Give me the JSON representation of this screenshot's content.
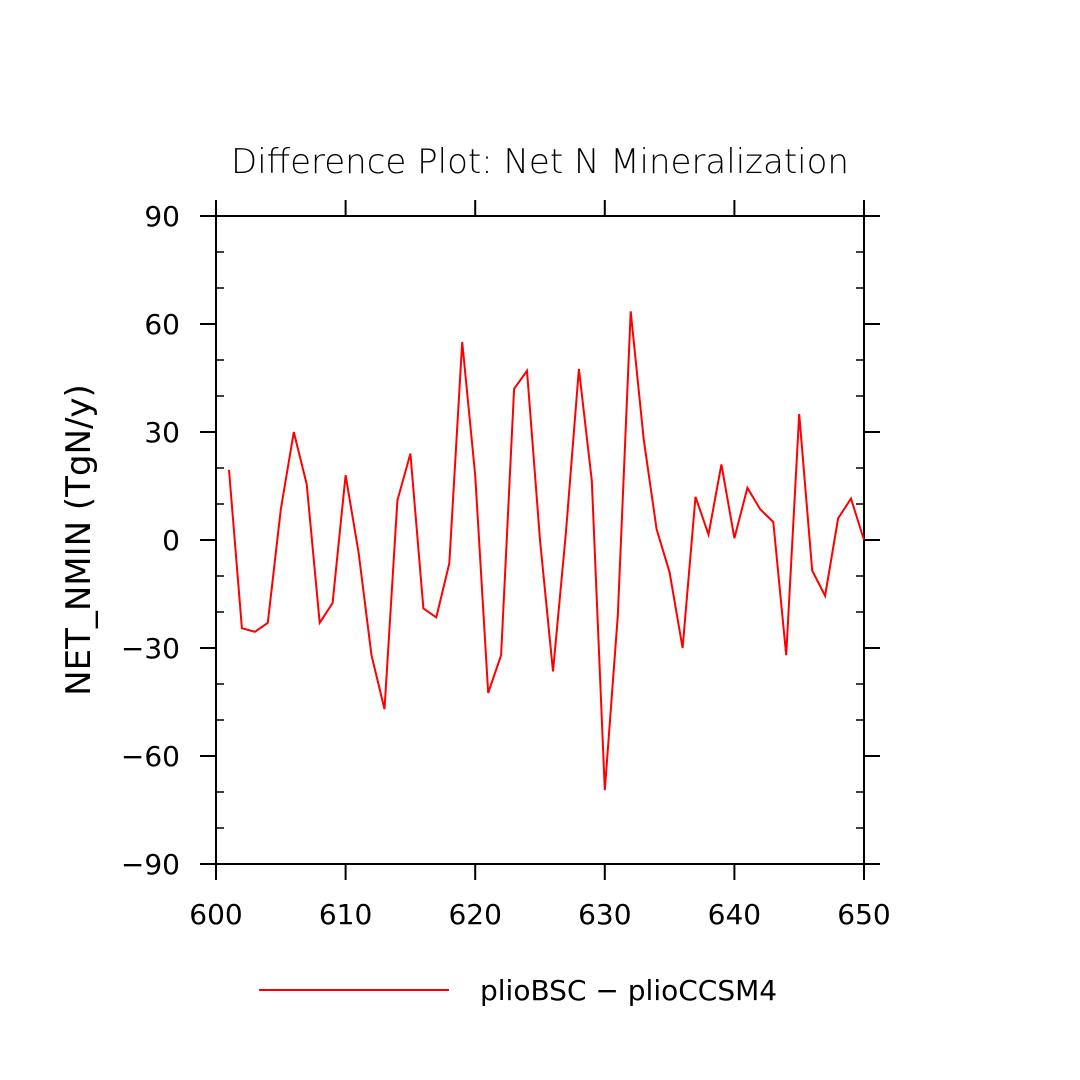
{
  "chart_data": {
    "type": "line",
    "title": "Difference Plot: Net N Mineralization",
    "xlabel": "",
    "ylabel": "NET_NMIN   (TgN/y)",
    "xlim": [
      600,
      650
    ],
    "ylim": [
      -90,
      90
    ],
    "xticks": [
      "600",
      "610",
      "620",
      "630",
      "640",
      "650"
    ],
    "yticks": [
      "90",
      "60",
      "30",
      "0",
      "−30",
      "−60",
      "−90"
    ],
    "x_tick_values": [
      600,
      610,
      620,
      630,
      640,
      650
    ],
    "y_tick_values": [
      90,
      60,
      30,
      0,
      -30,
      -60,
      -90
    ],
    "grid": false,
    "legend_position": "bottom",
    "series": [
      {
        "name": "plioBSC − plioCCSM4",
        "color": "#ff0000",
        "x": [
          601,
          602,
          603,
          604,
          605,
          606,
          607,
          608,
          609,
          610,
          611,
          612,
          613,
          614,
          615,
          616,
          617,
          618,
          619,
          620,
          621,
          622,
          623,
          624,
          625,
          626,
          627,
          628,
          629,
          630,
          631,
          632,
          633,
          634,
          635,
          636,
          637,
          638,
          639,
          640,
          641,
          642,
          643,
          644,
          645,
          646,
          647,
          648,
          649,
          650
        ],
        "y": [
          19.5,
          -24.5,
          -25.5,
          -23,
          8.5,
          30,
          15.5,
          -23,
          -17.5,
          18,
          -3.5,
          -32,
          -47,
          11,
          24,
          -19,
          -21.5,
          -6.5,
          55,
          18,
          -42.5,
          -32,
          42,
          47,
          0,
          -36.5,
          2,
          47.5,
          16.5,
          -69.5,
          -21,
          63.5,
          28,
          3,
          -9,
          -30,
          12,
          1.5,
          21,
          0.5,
          14.5,
          8.5,
          5,
          -32,
          35,
          -8.5,
          -15.5,
          6,
          11.5,
          0
        ]
      }
    ]
  }
}
